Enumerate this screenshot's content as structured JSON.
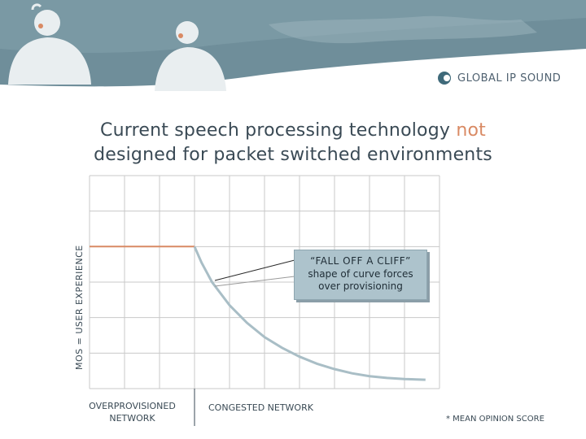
{
  "brand": {
    "logo_text": "GLOBAL IP SOUND"
  },
  "slide": {
    "title_part1": "Current speech processing technology",
    "title_accent": "not",
    "title_part2": "designed for packet switched environments",
    "footnote": "* MEAN OPINION SCORE"
  },
  "callout": {
    "title": "“FALL OFF A CLIFF”",
    "line1": "shape of curve forces",
    "line2": "over provisioning"
  },
  "colors": {
    "header_bg": "#6f8e9a",
    "accent": "#d98a64",
    "curve": "#a9bec6",
    "grid": "#c8c8c8",
    "text": "#3a4a55"
  },
  "chart_data": {
    "type": "line",
    "title": "Current speech processing technology not designed for packet switched environments",
    "ylabel": "MOS = USER EXPERIENCE",
    "xlabel": "",
    "x_categories": [
      {
        "label_line1": "OVERPROVISIONED",
        "label_line2": "NETWORK"
      },
      {
        "label_line1": "CONGESTED NETWORK",
        "label_line2": ""
      }
    ],
    "xlim": [
      0,
      10
    ],
    "ylim": [
      0,
      6
    ],
    "grid": true,
    "divider_x": 3.0,
    "series": [
      {
        "name": "overprovisioned",
        "color": "#d98a64",
        "points": [
          [
            0,
            4.0
          ],
          [
            3.0,
            4.0
          ]
        ]
      },
      {
        "name": "congested",
        "color": "#a9bec6",
        "points": [
          [
            3.0,
            4.0
          ],
          [
            3.2,
            3.55
          ],
          [
            3.5,
            3.0
          ],
          [
            4.0,
            2.35
          ],
          [
            4.5,
            1.85
          ],
          [
            5.0,
            1.45
          ],
          [
            5.5,
            1.15
          ],
          [
            6.0,
            0.9
          ],
          [
            6.5,
            0.7
          ],
          [
            7.0,
            0.55
          ],
          [
            7.5,
            0.43
          ],
          [
            8.0,
            0.35
          ],
          [
            8.5,
            0.3
          ],
          [
            9.0,
            0.27
          ],
          [
            9.6,
            0.25
          ]
        ]
      }
    ]
  }
}
